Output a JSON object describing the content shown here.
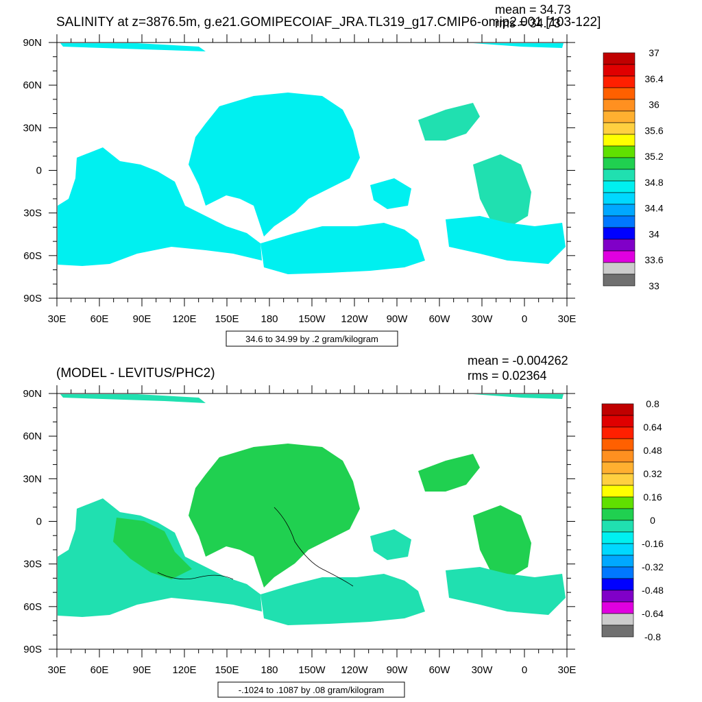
{
  "panels": [
    {
      "title": "SALINITY at z=3876.5m, g.e21.GOMIPECOIAF_JRA.TL319_g17.CMIP6-omip2.001 [103-122]",
      "mean": "mean = 34.73",
      "rms": "rms = 34.73",
      "info": "34.6 to 34.99 by .2 gram/kilogram",
      "colorbar_labels": [
        "37",
        "36.4",
        "36",
        "35.6",
        "35.2",
        "34.8",
        "34.4",
        "34",
        "33.6",
        "33"
      ]
    },
    {
      "title": "(MODEL - LEVITUS/PHC2)",
      "mean": "mean = -0.004262",
      "rms": "rms = 0.02364",
      "info": "-.1024 to .1087 by .08 gram/kilogram",
      "colorbar_labels": [
        "0.8",
        "0.64",
        "0.48",
        "0.32",
        "0.16",
        "0",
        "-0.16",
        "-0.32",
        "-0.48",
        "-0.64",
        "-0.8"
      ]
    }
  ],
  "axes": {
    "x_ticks": [
      "30E",
      "60E",
      "90E",
      "120E",
      "150E",
      "180",
      "150W",
      "120W",
      "90W",
      "60W",
      "30W",
      "0",
      "30E"
    ],
    "y_ticks": [
      "90N",
      "60N",
      "30N",
      "0",
      "30S",
      "60S",
      "90S"
    ]
  },
  "colorbar_colors": [
    "#c00000",
    "#e00000",
    "#ff2000",
    "#ff6000",
    "#ff9020",
    "#ffb030",
    "#ffd040",
    "#ffff00",
    "#60e000",
    "#20d050",
    "#20e0b0",
    "#00f0f0",
    "#00d8ff",
    "#00a8ff",
    "#0078ff",
    "#0000ff",
    "#8000c8",
    "#e000e0",
    "#cccccc",
    "#707070"
  ],
  "chart_data": [
    {
      "type": "heatmap",
      "title": "SALINITY at z=3876.5m, g.e21.GOMIPECOIAF_JRA.TL319_g17.CMIP6-omip2.001 [103-122]",
      "x_range": [
        "30E",
        "30E"
      ],
      "y_range": [
        "90S",
        "90N"
      ],
      "field_colors": {
        "dominant": "#00f0f0",
        "secondary": "#20e0b0"
      },
      "mean": 34.73,
      "rms": 34.73,
      "contour_info": "34.6 to 34.99 by .2 gram/kilogram"
    },
    {
      "type": "heatmap",
      "title": "(MODEL - LEVITUS/PHC2)",
      "x_range": [
        "30E",
        "30E"
      ],
      "y_range": [
        "90S",
        "90N"
      ],
      "field_colors": {
        "dominant": "#20e0b0",
        "secondary": "#20d050"
      },
      "mean": -0.004262,
      "rms": 0.02364,
      "contour_info": "-.1024 to .1087 by .08 gram/kilogram"
    }
  ]
}
